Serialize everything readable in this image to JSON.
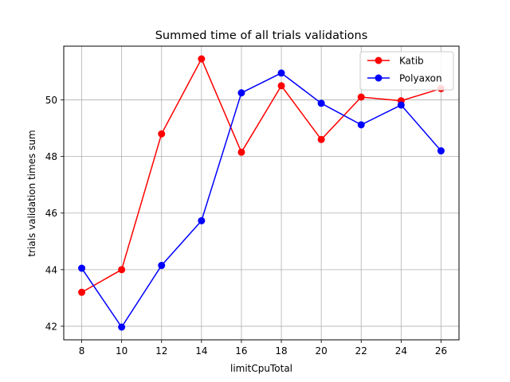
{
  "chart_data": {
    "type": "line",
    "title": "Summed time of all trials validations",
    "xlabel": "limitCpuTotal",
    "ylabel": "trials validation times sum",
    "x": [
      8,
      10,
      12,
      14,
      16,
      18,
      20,
      22,
      24,
      26
    ],
    "xticks": [
      "8",
      "10",
      "12",
      "14",
      "16",
      "18",
      "20",
      "22",
      "24",
      "26"
    ],
    "yticks": [
      42,
      44,
      46,
      48,
      50
    ],
    "ytick_labels": [
      "42",
      "44",
      "46",
      "48",
      "50"
    ],
    "xlim": [
      7.1,
      26.9
    ],
    "ylim": [
      41.52,
      51.9
    ],
    "grid": true,
    "legend_position": "upper-right",
    "series": [
      {
        "name": "Katib",
        "color": "#ff0000",
        "values": [
          43.2,
          44.0,
          48.8,
          51.45,
          48.15,
          50.5,
          48.6,
          50.1,
          49.97,
          50.4
        ]
      },
      {
        "name": "Polyaxon",
        "color": "#0000ff",
        "values": [
          44.05,
          41.97,
          44.15,
          45.73,
          50.25,
          50.95,
          49.88,
          49.12,
          49.82,
          48.2
        ]
      }
    ]
  }
}
